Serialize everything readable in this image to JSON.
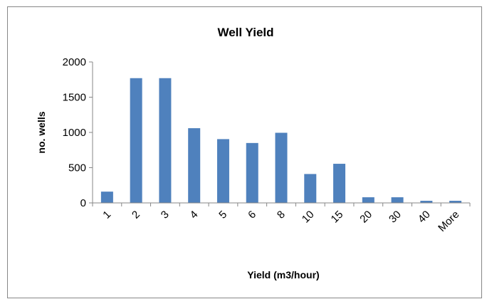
{
  "chart_data": {
    "type": "bar",
    "title": "Well Yield",
    "xlabel": "Yield (m3/hour)",
    "ylabel": "no. wells",
    "categories": [
      "1",
      "2",
      "3",
      "4",
      "5",
      "6",
      "8",
      "10",
      "15",
      "20",
      "30",
      "40",
      "More"
    ],
    "values": [
      160,
      1770,
      1770,
      1060,
      905,
      850,
      995,
      410,
      555,
      80,
      80,
      30,
      30
    ],
    "ylim": [
      0,
      2000
    ],
    "yticks": [
      "0",
      "500",
      "1000",
      "1500",
      "2000"
    ],
    "grid": false,
    "legend": "none",
    "bar_color": "#4f81bd",
    "axis_color": "#878787"
  }
}
